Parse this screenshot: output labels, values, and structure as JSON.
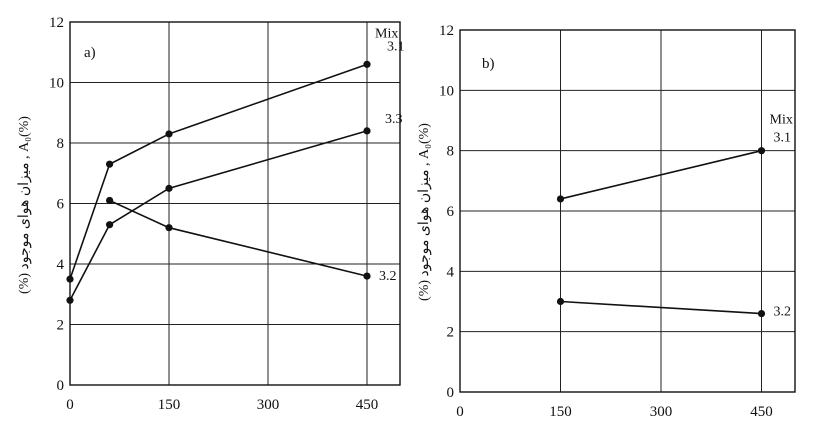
{
  "chart_data": [
    {
      "type": "line",
      "panel_label": "a)",
      "ylabel": "(%) میزان هوای موجود , A₀(%)",
      "x_ticks": [
        "0",
        "150",
        "300",
        "450"
      ],
      "xlim": [
        0,
        500
      ],
      "y_ticks": [
        "0",
        "2",
        "4",
        "6",
        "8",
        "10",
        "12"
      ],
      "ylim": [
        0,
        12
      ],
      "grid": true,
      "legend_header": "Mix",
      "series": [
        {
          "name": "3.1",
          "x": [
            0,
            60,
            150,
            450
          ],
          "y": [
            3.5,
            7.3,
            8.3,
            10.6
          ]
        },
        {
          "name": "3.3",
          "x": [
            0,
            60,
            150,
            450
          ],
          "y": [
            2.8,
            5.3,
            6.5,
            8.4
          ]
        },
        {
          "name": "3.2",
          "x": [
            60,
            150,
            450
          ],
          "y": [
            6.1,
            5.2,
            3.6
          ]
        }
      ]
    },
    {
      "type": "line",
      "panel_label": "b)",
      "ylabel": "(%) میزان هوای موجود , A₀(%)",
      "x_ticks": [
        "0",
        "150",
        "300",
        "450"
      ],
      "xlim": [
        0,
        500
      ],
      "y_ticks": [
        "0",
        "2",
        "4",
        "6",
        "8",
        "10",
        "12"
      ],
      "ylim": [
        0,
        12
      ],
      "grid": true,
      "legend_header": "Mix",
      "series": [
        {
          "name": "3.1",
          "x": [
            150,
            450
          ],
          "y": [
            6.4,
            8.0
          ]
        },
        {
          "name": "3.2",
          "x": [
            150,
            450
          ],
          "y": [
            3.0,
            2.6
          ]
        }
      ]
    }
  ]
}
